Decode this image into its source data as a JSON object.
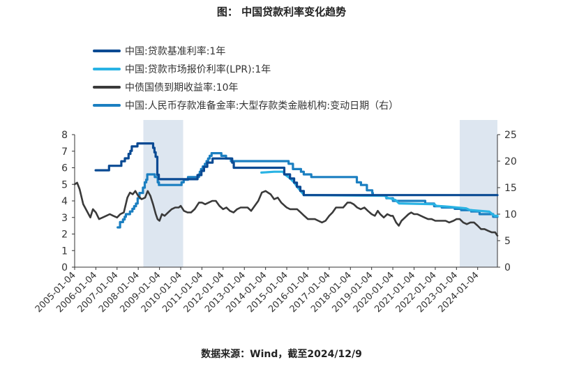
{
  "header": {
    "title": "图：  中国贷款利率变化趋势"
  },
  "footer": {
    "source": "数据来源：Wind，截至2024/12/9"
  },
  "colors": {
    "benchmark": "#0a4a93",
    "lpr": "#29b3e4",
    "bond": "#3a3a3a",
    "rrr": "#1b7fc1",
    "shade": "#dde6f0",
    "axis": "#333333"
  },
  "chart_data": {
    "type": "line",
    "title": "",
    "xlabel": "",
    "ylabel": "",
    "ylim_left": [
      0,
      8
    ],
    "ylim_right": [
      0,
      25
    ],
    "yticks_left": [
      0,
      1,
      2,
      3,
      4,
      5,
      6,
      7,
      8
    ],
    "yticks_right": [
      0,
      5,
      10,
      15,
      20,
      25
    ],
    "xlim": [
      "2005-01-04",
      "2024-12-09"
    ],
    "xticks": [
      "2005-01-04",
      "2006-01-04",
      "2007-01-04",
      "2008-01-04",
      "2009-01-04",
      "2010-01-04",
      "2011-01-04",
      "2012-01-04",
      "2013-01-04",
      "2014-01-04",
      "2015-01-04",
      "2016-01-04",
      "2017-01-04",
      "2018-01-04",
      "2019-01-04",
      "2020-01-04",
      "2021-01-04",
      "2022-01-04",
      "2023-01-04",
      "2024-01-04"
    ],
    "grid": false,
    "legend_position": "top-left",
    "shaded_ranges": [
      [
        "2008-04-01",
        "2010-02-15"
      ],
      [
        "2023-03-01",
        "2024-12-09"
      ]
    ],
    "series": [
      {
        "name": "中国:贷款基准利率:1年",
        "axis": "left",
        "color_key": "benchmark",
        "step": true,
        "points": [
          [
            "2006-01-01",
            5.85
          ],
          [
            "2006-04-28",
            5.85
          ],
          [
            "2006-08-19",
            6.12
          ],
          [
            "2007-03-18",
            6.39
          ],
          [
            "2007-05-19",
            6.57
          ],
          [
            "2007-07-21",
            6.84
          ],
          [
            "2007-08-22",
            7.02
          ],
          [
            "2007-09-15",
            7.29
          ],
          [
            "2007-12-21",
            7.47
          ],
          [
            "2008-09-16",
            7.2
          ],
          [
            "2008-10-09",
            6.93
          ],
          [
            "2008-10-30",
            6.66
          ],
          [
            "2008-11-27",
            5.58
          ],
          [
            "2008-12-23",
            5.31
          ],
          [
            "2010-10-20",
            5.56
          ],
          [
            "2010-12-26",
            5.81
          ],
          [
            "2011-02-09",
            6.06
          ],
          [
            "2011-04-06",
            6.31
          ],
          [
            "2011-07-07",
            6.56
          ],
          [
            "2012-06-08",
            6.31
          ],
          [
            "2012-07-06",
            6.0
          ],
          [
            "2014-11-22",
            5.6
          ],
          [
            "2015-03-01",
            5.35
          ],
          [
            "2015-05-11",
            5.1
          ],
          [
            "2015-06-28",
            4.85
          ],
          [
            "2015-08-26",
            4.6
          ],
          [
            "2015-10-24",
            4.35
          ],
          [
            "2024-12-09",
            4.35
          ]
        ]
      },
      {
        "name": "中国:贷款市场报价利率(LPR):1年",
        "axis": "left",
        "color_key": "lpr",
        "step": false,
        "points": [
          [
            "2013-10-25",
            5.71
          ],
          [
            "2014-06-01",
            5.76
          ],
          [
            "2014-11-01",
            5.76
          ],
          [
            "2014-12-01",
            5.6
          ],
          [
            "2015-03-05",
            5.35
          ],
          [
            "2015-05-15",
            5.1
          ],
          [
            "2015-07-01",
            4.85
          ],
          [
            "2015-09-01",
            4.6
          ],
          [
            "2015-10-28",
            4.35
          ],
          [
            "2019-08-20",
            4.31
          ],
          [
            "2019-09-20",
            4.2
          ],
          [
            "2019-11-20",
            4.15
          ],
          [
            "2020-02-20",
            4.05
          ],
          [
            "2020-04-20",
            3.85
          ],
          [
            "2021-12-20",
            3.8
          ],
          [
            "2022-01-20",
            3.7
          ],
          [
            "2022-08-22",
            3.65
          ],
          [
            "2023-06-20",
            3.55
          ],
          [
            "2023-08-21",
            3.45
          ],
          [
            "2024-07-22",
            3.35
          ],
          [
            "2024-10-21",
            3.1
          ],
          [
            "2024-12-09",
            3.1
          ]
        ]
      },
      {
        "name": "中债国债到期收益率:10年",
        "axis": "left",
        "color_key": "bond",
        "step": false,
        "points": [
          [
            "2005-01-04",
            5.0
          ],
          [
            "2005-02-15",
            5.1
          ],
          [
            "2005-04-01",
            4.7
          ],
          [
            "2005-06-01",
            3.8
          ],
          [
            "2005-08-01",
            3.4
          ],
          [
            "2005-10-01",
            3.0
          ],
          [
            "2005-11-15",
            3.5
          ],
          [
            "2006-01-04",
            3.3
          ],
          [
            "2006-03-01",
            2.9
          ],
          [
            "2006-05-01",
            3.0
          ],
          [
            "2006-07-01",
            3.1
          ],
          [
            "2006-09-01",
            3.2
          ],
          [
            "2006-11-01",
            3.1
          ],
          [
            "2007-01-04",
            3.0
          ],
          [
            "2007-03-01",
            3.2
          ],
          [
            "2007-05-01",
            3.3
          ],
          [
            "2007-07-01",
            4.2
          ],
          [
            "2007-08-15",
            4.5
          ],
          [
            "2007-10-01",
            4.4
          ],
          [
            "2007-11-15",
            4.6
          ],
          [
            "2008-01-04",
            4.3
          ],
          [
            "2008-03-01",
            4.1
          ],
          [
            "2008-05-01",
            4.2
          ],
          [
            "2008-06-15",
            4.6
          ],
          [
            "2008-08-01",
            4.3
          ],
          [
            "2008-09-15",
            3.8
          ],
          [
            "2008-11-01",
            3.2
          ],
          [
            "2008-12-01",
            2.9
          ],
          [
            "2009-01-04",
            2.8
          ],
          [
            "2009-02-15",
            3.2
          ],
          [
            "2009-04-01",
            3.1
          ],
          [
            "2009-06-01",
            3.3
          ],
          [
            "2009-08-01",
            3.5
          ],
          [
            "2009-10-01",
            3.6
          ],
          [
            "2009-12-01",
            3.6
          ],
          [
            "2010-01-04",
            3.7
          ],
          [
            "2010-03-01",
            3.4
          ],
          [
            "2010-05-01",
            3.3
          ],
          [
            "2010-07-01",
            3.3
          ],
          [
            "2010-09-01",
            3.5
          ],
          [
            "2010-11-15",
            3.9
          ],
          [
            "2011-01-04",
            3.9
          ],
          [
            "2011-03-01",
            3.8
          ],
          [
            "2011-05-01",
            3.9
          ],
          [
            "2011-07-01",
            4.0
          ],
          [
            "2011-09-01",
            4.0
          ],
          [
            "2011-11-01",
            3.7
          ],
          [
            "2012-01-04",
            3.5
          ],
          [
            "2012-03-01",
            3.6
          ],
          [
            "2012-05-01",
            3.4
          ],
          [
            "2012-07-01",
            3.3
          ],
          [
            "2012-09-01",
            3.5
          ],
          [
            "2012-11-01",
            3.6
          ],
          [
            "2013-01-04",
            3.6
          ],
          [
            "2013-03-01",
            3.6
          ],
          [
            "2013-05-01",
            3.4
          ],
          [
            "2013-07-01",
            3.7
          ],
          [
            "2013-09-01",
            4.0
          ],
          [
            "2013-11-01",
            4.5
          ],
          [
            "2014-01-04",
            4.6
          ],
          [
            "2014-02-15",
            4.5
          ],
          [
            "2014-04-01",
            4.4
          ],
          [
            "2014-06-01",
            4.1
          ],
          [
            "2014-08-01",
            4.2
          ],
          [
            "2014-10-01",
            3.9
          ],
          [
            "2014-12-01",
            3.7
          ],
          [
            "2015-01-04",
            3.6
          ],
          [
            "2015-03-01",
            3.5
          ],
          [
            "2015-05-01",
            3.5
          ],
          [
            "2015-07-01",
            3.5
          ],
          [
            "2015-09-01",
            3.3
          ],
          [
            "2015-11-01",
            3.1
          ],
          [
            "2016-01-04",
            2.9
          ],
          [
            "2016-03-01",
            2.9
          ],
          [
            "2016-05-01",
            2.9
          ],
          [
            "2016-07-01",
            2.8
          ],
          [
            "2016-09-01",
            2.7
          ],
          [
            "2016-11-01",
            2.8
          ],
          [
            "2017-01-04",
            3.1
          ],
          [
            "2017-03-01",
            3.3
          ],
          [
            "2017-05-01",
            3.6
          ],
          [
            "2017-07-01",
            3.6
          ],
          [
            "2017-09-01",
            3.6
          ],
          [
            "2017-11-15",
            3.9
          ],
          [
            "2018-01-04",
            3.9
          ],
          [
            "2018-03-01",
            3.8
          ],
          [
            "2018-05-01",
            3.6
          ],
          [
            "2018-07-01",
            3.5
          ],
          [
            "2018-09-01",
            3.6
          ],
          [
            "2018-11-01",
            3.4
          ],
          [
            "2019-01-04",
            3.2
          ],
          [
            "2019-03-01",
            3.1
          ],
          [
            "2019-04-20",
            3.4
          ],
          [
            "2019-06-01",
            3.2
          ],
          [
            "2019-08-01",
            3.0
          ],
          [
            "2019-10-01",
            3.2
          ],
          [
            "2019-12-01",
            3.1
          ],
          [
            "2020-01-04",
            3.1
          ],
          [
            "2020-03-01",
            2.7
          ],
          [
            "2020-04-15",
            2.5
          ],
          [
            "2020-06-01",
            2.8
          ],
          [
            "2020-08-01",
            3.0
          ],
          [
            "2020-10-01",
            3.2
          ],
          [
            "2020-11-15",
            3.3
          ],
          [
            "2021-01-04",
            3.2
          ],
          [
            "2021-03-01",
            3.2
          ],
          [
            "2021-05-01",
            3.1
          ],
          [
            "2021-07-01",
            3.0
          ],
          [
            "2021-09-01",
            2.9
          ],
          [
            "2021-11-01",
            2.9
          ],
          [
            "2022-01-04",
            2.8
          ],
          [
            "2022-03-01",
            2.8
          ],
          [
            "2022-05-01",
            2.8
          ],
          [
            "2022-07-01",
            2.8
          ],
          [
            "2022-09-01",
            2.7
          ],
          [
            "2022-11-15",
            2.8
          ],
          [
            "2023-01-04",
            2.9
          ],
          [
            "2023-03-01",
            2.9
          ],
          [
            "2023-05-01",
            2.7
          ],
          [
            "2023-07-01",
            2.6
          ],
          [
            "2023-09-01",
            2.7
          ],
          [
            "2023-11-01",
            2.7
          ],
          [
            "2024-01-04",
            2.5
          ],
          [
            "2024-03-01",
            2.3
          ],
          [
            "2024-05-01",
            2.3
          ],
          [
            "2024-07-01",
            2.2
          ],
          [
            "2024-09-01",
            2.1
          ],
          [
            "2024-11-01",
            2.1
          ],
          [
            "2024-12-09",
            1.9
          ]
        ]
      },
      {
        "name": "中国:人民币存款准备金率:大型存款类金融机构:变动日期（右）",
        "axis": "right",
        "color_key": "rrr",
        "step": true,
        "points": [
          [
            "2007-01-15",
            7.5
          ],
          [
            "2007-02-25",
            8.5
          ],
          [
            "2007-04-16",
            9.0
          ],
          [
            "2007-05-15",
            9.5
          ],
          [
            "2007-06-05",
            10.0
          ],
          [
            "2007-08-15",
            10.5
          ],
          [
            "2007-09-25",
            11.0
          ],
          [
            "2007-10-25",
            11.5
          ],
          [
            "2007-11-26",
            12.0
          ],
          [
            "2007-12-25",
            13.0
          ],
          [
            "2008-01-25",
            14.0
          ],
          [
            "2008-03-25",
            15.0
          ],
          [
            "2008-04-25",
            16.0
          ],
          [
            "2008-05-20",
            16.5
          ],
          [
            "2008-06-07",
            17.5
          ],
          [
            "2008-10-15",
            17.0
          ],
          [
            "2008-12-05",
            16.0
          ],
          [
            "2008-12-25",
            15.5
          ],
          [
            "2010-01-18",
            16.0
          ],
          [
            "2010-02-25",
            16.5
          ],
          [
            "2010-05-10",
            17.0
          ],
          [
            "2010-11-16",
            17.5
          ],
          [
            "2010-11-29",
            18.0
          ],
          [
            "2010-12-20",
            18.5
          ],
          [
            "2011-01-20",
            19.0
          ],
          [
            "2011-02-24",
            19.5
          ],
          [
            "2011-03-25",
            20.0
          ],
          [
            "2011-04-21",
            20.5
          ],
          [
            "2011-05-18",
            21.0
          ],
          [
            "2011-06-20",
            21.5
          ],
          [
            "2011-12-05",
            21.0
          ],
          [
            "2012-02-24",
            20.5
          ],
          [
            "2012-05-18",
            20.0
          ],
          [
            "2015-02-05",
            19.5
          ],
          [
            "2015-04-20",
            18.5
          ],
          [
            "2015-09-06",
            18.0
          ],
          [
            "2015-10-24",
            17.5
          ],
          [
            "2016-03-01",
            17.0
          ],
          [
            "2018-04-25",
            16.0
          ],
          [
            "2018-07-05",
            15.5
          ],
          [
            "2018-10-15",
            14.5
          ],
          [
            "2019-01-15",
            14.0
          ],
          [
            "2019-01-25",
            13.5
          ],
          [
            "2019-09-16",
            13.0
          ],
          [
            "2020-01-06",
            12.5
          ],
          [
            "2021-07-15",
            12.0
          ],
          [
            "2021-12-15",
            11.5
          ],
          [
            "2022-04-25",
            11.25
          ],
          [
            "2022-12-05",
            11.0
          ],
          [
            "2023-03-27",
            10.75
          ],
          [
            "2023-09-15",
            10.5
          ],
          [
            "2024-02-05",
            10.0
          ],
          [
            "2024-09-27",
            9.5
          ],
          [
            "2024-12-09",
            9.5
          ]
        ]
      }
    ]
  }
}
